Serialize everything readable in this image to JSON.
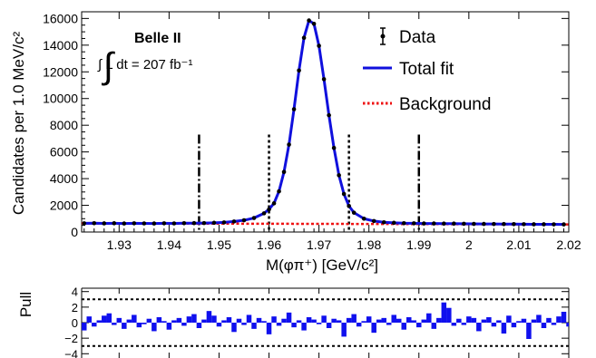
{
  "chart_data": [
    {
      "type": "line",
      "xlabel": "M(φπ⁺) [GeV/c²]",
      "ylabel": "Candidates per 1.0 MeV/c²",
      "xlim": [
        1.9225,
        2.02
      ],
      "ylim": [
        0,
        16500
      ],
      "xticks": [
        "1.93",
        "1.94",
        "1.95",
        "1.96",
        "1.97",
        "1.98",
        "1.99",
        "2",
        "2.01",
        "2.02"
      ],
      "yticks": [
        "0",
        "2000",
        "4000",
        "6000",
        "8000",
        "10000",
        "12000",
        "14000",
        "16000"
      ],
      "experiment_label": "Belle II",
      "luminosity_label": "∫ L dt = 207 fb⁻¹",
      "legend": {
        "position": "top-right",
        "entries": [
          {
            "label": "Data",
            "style": "marker",
            "color": "#000000"
          },
          {
            "label": "Total fit",
            "style": "solid",
            "color": "#1010dd"
          },
          {
            "label": "Background",
            "style": "dotted",
            "color": "#ee1111"
          }
        ]
      },
      "peak_position": 1.9685,
      "peak_height": 15900,
      "background_level": [
        650,
        570
      ],
      "signal_region": [
        1.96,
        1.976
      ],
      "sideband_edges": [
        1.946,
        1.99
      ],
      "series": [
        {
          "name": "Data",
          "x": [
            1.923,
            1.925,
            1.927,
            1.929,
            1.931,
            1.933,
            1.935,
            1.937,
            1.939,
            1.941,
            1.943,
            1.945,
            1.947,
            1.949,
            1.951,
            1.953,
            1.955,
            1.957,
            1.959,
            1.96,
            1.961,
            1.962,
            1.963,
            1.964,
            1.965,
            1.966,
            1.967,
            1.968,
            1.969,
            1.97,
            1.971,
            1.972,
            1.973,
            1.974,
            1.975,
            1.976,
            1.977,
            1.979,
            1.981,
            1.983,
            1.985,
            1.987,
            1.989,
            1.991,
            1.993,
            1.995,
            1.997,
            1.999,
            2.001,
            2.003,
            2.005,
            2.007,
            2.009,
            2.011,
            2.013,
            2.015,
            2.017,
            2.019
          ],
          "y": [
            652,
            660,
            648,
            655,
            640,
            652,
            645,
            640,
            650,
            645,
            660,
            665,
            670,
            690,
            720,
            790,
            880,
            1050,
            1400,
            1700,
            2150,
            3050,
            4500,
            6550,
            9200,
            12100,
            14550,
            15850,
            15600,
            13950,
            11450,
            8750,
            6300,
            4250,
            2850,
            1950,
            1450,
            1000,
            820,
            730,
            690,
            660,
            650,
            640,
            640,
            630,
            630,
            620,
            610,
            605,
            600,
            595,
            590,
            585,
            580,
            580,
            575,
            570
          ]
        }
      ]
    },
    {
      "type": "bar",
      "ylabel": "Pull",
      "ylim": [
        -4.4,
        4.4
      ],
      "yticks": [
        "4",
        "2",
        "0",
        "−2",
        "−4"
      ],
      "reference_lines": [
        3,
        -3
      ],
      "x_start": 1.923,
      "bin_width": 0.001,
      "values": [
        -1.0,
        0.8,
        -0.5,
        0.3,
        0.9,
        1.2,
        -0.3,
        0.6,
        -0.8,
        0.4,
        1.0,
        -0.6,
        -0.2,
        0.5,
        -1.1,
        0.7,
        0.2,
        -0.9,
        0.3,
        0.6,
        -0.4,
        0.8,
        1.1,
        -0.7,
        0.4,
        1.5,
        0.9,
        -0.5,
        0.3,
        0.7,
        -1.2,
        0.5,
        -0.3,
        1.0,
        -0.8,
        0.6,
        0.2,
        -1.5,
        0.8,
        -0.4,
        0.5,
        1.3,
        -0.6,
        0.3,
        -1.0,
        0.7,
        0.4,
        -0.2,
        0.9,
        -0.7,
        0.5,
        0.3,
        -1.8,
        0.6,
        1.1,
        -0.5,
        0.2,
        0.8,
        -1.3,
        0.4,
        0.6,
        -0.3,
        1.0,
        0.5,
        -0.9,
        0.7,
        0.3,
        -0.6,
        0.4,
        1.2,
        -0.8,
        0.6,
        2.6,
        1.9,
        -0.4,
        0.5,
        -0.3,
        0.8,
        0.6,
        -1.1,
        0.4,
        0.7,
        -0.5,
        0.3,
        -1.4,
        0.9,
        -0.6,
        0.2,
        0.5,
        -2.1,
        0.4,
        1.0,
        -0.7,
        0.6,
        -0.3,
        0.8,
        1.4,
        -0.5,
        0.3,
        0.7
      ]
    }
  ]
}
